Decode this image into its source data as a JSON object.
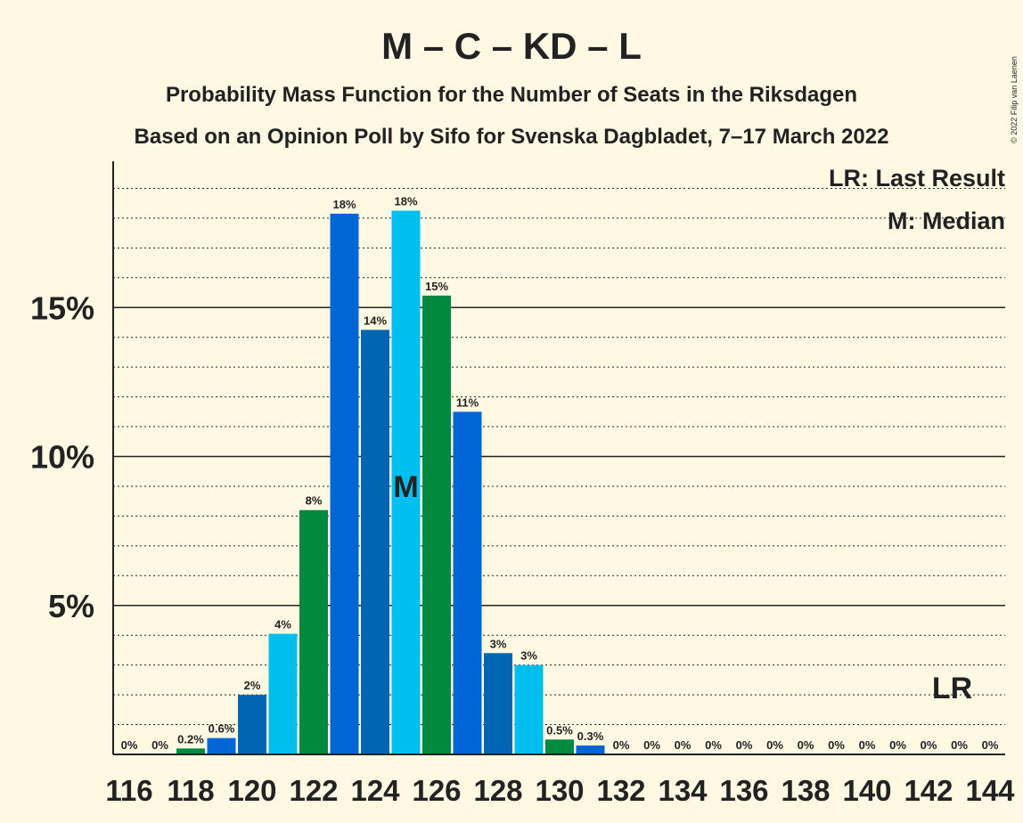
{
  "copyright": "© 2022 Filip van Laenen",
  "chart_data": {
    "type": "bar",
    "title": "M – C – KD – L",
    "subtitle": "Probability Mass Function for the Number of Seats in the Riksdagen",
    "subtitle2": "Based on an Opinion Poll by Sifo for Svenska Dagbladet, 7–17 March 2022",
    "legend": {
      "lr": "LR: Last Result",
      "median": "M: Median"
    },
    "median_marker": "M",
    "last_result_marker": "LR",
    "median_seat": 125,
    "last_result_seat": 143,
    "x": [
      116,
      117,
      118,
      119,
      120,
      121,
      122,
      123,
      124,
      125,
      126,
      127,
      128,
      129,
      130,
      131,
      132,
      133,
      134,
      135,
      136,
      137,
      138,
      139,
      140,
      141,
      142,
      143,
      144
    ],
    "values": [
      0,
      0,
      0.2,
      0.6,
      2,
      4,
      8,
      18,
      14,
      18,
      15,
      11,
      3,
      3,
      0.5,
      0.3,
      0,
      0,
      0,
      0,
      0,
      0,
      0,
      0,
      0,
      0,
      0,
      0,
      0
    ],
    "heights": [
      0,
      0,
      0.2,
      0.55,
      2.0,
      4.05,
      8.2,
      18.15,
      14.25,
      18.25,
      15.4,
      11.5,
      3.4,
      3.0,
      0.5,
      0.3,
      0,
      0,
      0,
      0,
      0,
      0,
      0,
      0,
      0,
      0,
      0,
      0,
      0
    ],
    "labels": [
      "0%",
      "0%",
      "0.2%",
      "0.6%",
      "2%",
      "4%",
      "8%",
      "18%",
      "14%",
      "18%",
      "15%",
      "11%",
      "3%",
      "3%",
      "0.5%",
      "0.3%",
      "0%",
      "0%",
      "0%",
      "0%",
      "0%",
      "0%",
      "0%",
      "0%",
      "0%",
      "0%",
      "0%",
      "0%",
      "0%"
    ],
    "xtick_labels": [
      "116",
      "118",
      "120",
      "122",
      "124",
      "126",
      "128",
      "130",
      "132",
      "134",
      "136",
      "138",
      "140",
      "142",
      "144"
    ],
    "y_ticks": [
      5,
      10,
      15
    ],
    "y_tick_labels": [
      "5%",
      "10%",
      "15%"
    ],
    "ylim": [
      0,
      20
    ],
    "grid": "dotted minor, solid major",
    "legend_position": "top-right",
    "colors": {
      "palette": [
        "#0066b3",
        "#00bfee",
        "#00893f",
        "#0066d6"
      ],
      "text": "#222222",
      "background": "#fff8e3"
    }
  }
}
